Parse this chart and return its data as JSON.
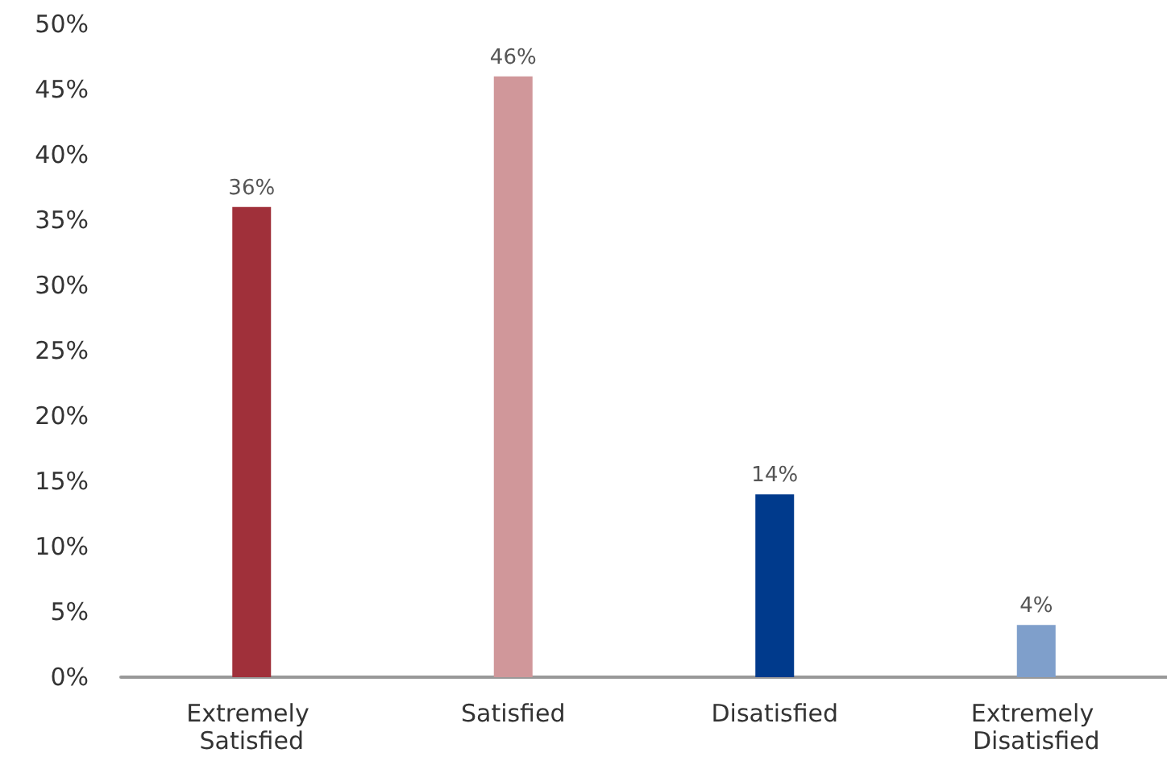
{
  "chart_data": {
    "type": "bar",
    "categories": [
      "Extremely Satisfied",
      "Satisfied",
      "Disatisfied",
      "Extremely Disatisfied"
    ],
    "values": [
      36,
      46,
      14,
      4
    ],
    "colors": [
      "#a0303a",
      "#d0979a",
      "#003a8c",
      "#7f9fcb"
    ],
    "value_labels": [
      "36%",
      "46%",
      "14%",
      "4%"
    ],
    "ylim": [
      0,
      50
    ],
    "yticks": [
      {
        "value": 0,
        "label": "0%"
      },
      {
        "value": 5,
        "label": "5%"
      },
      {
        "value": 10,
        "label": "10%"
      },
      {
        "value": 15,
        "label": "15%"
      },
      {
        "value": 20,
        "label": "20%"
      },
      {
        "value": 25,
        "label": "25%"
      },
      {
        "value": 30,
        "label": "30%"
      },
      {
        "value": 35,
        "label": "35%"
      },
      {
        "value": 40,
        "label": "40%"
      },
      {
        "value": 45,
        "label": "45%"
      },
      {
        "value": 50,
        "label": "50%"
      }
    ],
    "grid": false
  }
}
